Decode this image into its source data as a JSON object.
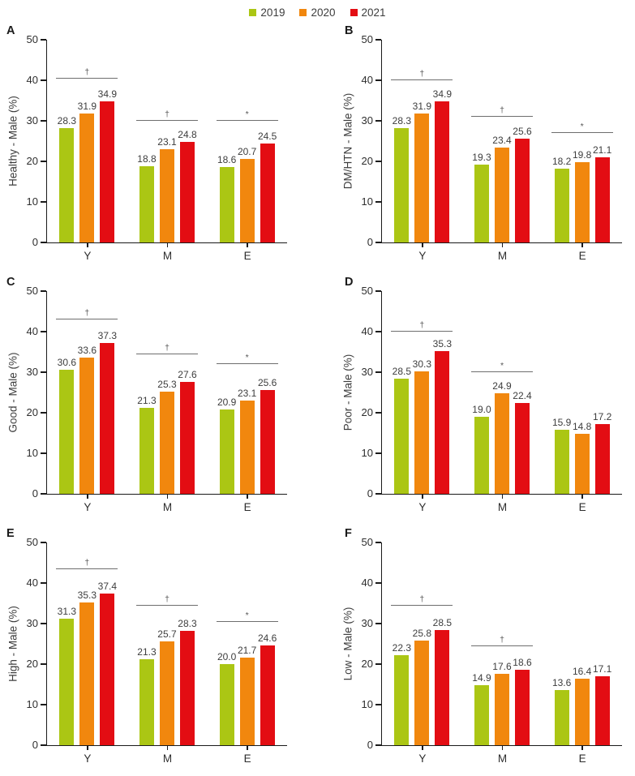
{
  "legend": {
    "items": [
      {
        "label": "2019",
        "color": "#abc614"
      },
      {
        "label": "2020",
        "color": "#f1870e"
      },
      {
        "label": "2021",
        "color": "#e30d13"
      }
    ]
  },
  "colors": {
    "series_2019": "#abc614",
    "series_2020": "#f1870e",
    "series_2021": "#e30d13",
    "axis": "#1a1a1a",
    "text": "#3d3d3d",
    "significance_line": "#6e6e6e"
  },
  "chart_data": [
    {
      "type": "bar",
      "panel": "A",
      "title": "",
      "xlabel": "",
      "ylabel": "Healthy - Male (%)",
      "ylim": [
        0,
        50
      ],
      "yticks": [
        0,
        10,
        20,
        30,
        40,
        50
      ],
      "grid": false,
      "legend_position": "top-center-shared",
      "categories": [
        "Y",
        "M",
        "E"
      ],
      "series": [
        {
          "name": "2019",
          "color": "#abc614",
          "values": [
            28.3,
            18.8,
            18.6
          ]
        },
        {
          "name": "2020",
          "color": "#f1870e",
          "values": [
            31.9,
            23.1,
            20.7
          ]
        },
        {
          "name": "2021",
          "color": "#e30d13",
          "values": [
            34.9,
            24.8,
            24.5
          ]
        }
      ],
      "significance": [
        {
          "category": "Y",
          "symbol": "†",
          "line_y": 40.5
        },
        {
          "category": "M",
          "symbol": "†",
          "line_y": 30
        },
        {
          "category": "E",
          "symbol": "*",
          "line_y": 30
        }
      ]
    },
    {
      "type": "bar",
      "panel": "B",
      "title": "",
      "xlabel": "",
      "ylabel": "DM/HTN - Male (%)",
      "ylim": [
        0,
        50
      ],
      "yticks": [
        0,
        10,
        20,
        30,
        40,
        50
      ],
      "grid": false,
      "legend_position": "top-center-shared",
      "categories": [
        "Y",
        "M",
        "E"
      ],
      "series": [
        {
          "name": "2019",
          "color": "#abc614",
          "values": [
            28.3,
            19.3,
            18.2
          ]
        },
        {
          "name": "2020",
          "color": "#f1870e",
          "values": [
            31.9,
            23.4,
            19.8
          ]
        },
        {
          "name": "2021",
          "color": "#e30d13",
          "values": [
            34.9,
            25.6,
            21.1
          ]
        }
      ],
      "significance": [
        {
          "category": "Y",
          "symbol": "†",
          "line_y": 40
        },
        {
          "category": "M",
          "symbol": "†",
          "line_y": 31
        },
        {
          "category": "E",
          "symbol": "*",
          "line_y": 27
        }
      ]
    },
    {
      "type": "bar",
      "panel": "C",
      "title": "",
      "xlabel": "",
      "ylabel": "Good - Male (%)",
      "ylim": [
        0,
        50
      ],
      "yticks": [
        0,
        10,
        20,
        30,
        40,
        50
      ],
      "grid": false,
      "legend_position": "top-center-shared",
      "categories": [
        "Y",
        "M",
        "E"
      ],
      "series": [
        {
          "name": "2019",
          "color": "#abc614",
          "values": [
            30.6,
            21.3,
            20.9
          ]
        },
        {
          "name": "2020",
          "color": "#f1870e",
          "values": [
            33.6,
            25.3,
            23.1
          ]
        },
        {
          "name": "2021",
          "color": "#e30d13",
          "values": [
            37.3,
            27.6,
            25.6
          ]
        }
      ],
      "significance": [
        {
          "category": "Y",
          "symbol": "†",
          "line_y": 43
        },
        {
          "category": "M",
          "symbol": "†",
          "line_y": 34.5
        },
        {
          "category": "E",
          "symbol": "*",
          "line_y": 32
        }
      ]
    },
    {
      "type": "bar",
      "panel": "D",
      "title": "",
      "xlabel": "",
      "ylabel": "Poor - Male (%)",
      "ylim": [
        0,
        50
      ],
      "yticks": [
        0,
        10,
        20,
        30,
        40,
        50
      ],
      "grid": false,
      "legend_position": "top-center-shared",
      "categories": [
        "Y",
        "M",
        "E"
      ],
      "series": [
        {
          "name": "2019",
          "color": "#abc614",
          "values": [
            28.5,
            19.0,
            15.9
          ]
        },
        {
          "name": "2020",
          "color": "#f1870e",
          "values": [
            30.3,
            24.9,
            14.8
          ]
        },
        {
          "name": "2021",
          "color": "#e30d13",
          "values": [
            35.3,
            22.4,
            17.2
          ]
        }
      ],
      "significance": [
        {
          "category": "Y",
          "symbol": "†",
          "line_y": 40
        },
        {
          "category": "M",
          "symbol": "*",
          "line_y": 30
        }
      ]
    },
    {
      "type": "bar",
      "panel": "E",
      "title": "",
      "xlabel": "",
      "ylabel": "High - Male (%)",
      "ylim": [
        0,
        50
      ],
      "yticks": [
        0,
        10,
        20,
        30,
        40,
        50
      ],
      "grid": false,
      "legend_position": "top-center-shared",
      "categories": [
        "Y",
        "M",
        "E"
      ],
      "series": [
        {
          "name": "2019",
          "color": "#abc614",
          "values": [
            31.3,
            21.3,
            20.0
          ]
        },
        {
          "name": "2020",
          "color": "#f1870e",
          "values": [
            35.3,
            25.7,
            21.7
          ]
        },
        {
          "name": "2021",
          "color": "#e30d13",
          "values": [
            37.4,
            28.3,
            24.6
          ]
        }
      ],
      "significance": [
        {
          "category": "Y",
          "symbol": "†",
          "line_y": 43.5
        },
        {
          "category": "M",
          "symbol": "†",
          "line_y": 34.5
        },
        {
          "category": "E",
          "symbol": "*",
          "line_y": 30.5
        }
      ]
    },
    {
      "type": "bar",
      "panel": "F",
      "title": "",
      "xlabel": "",
      "ylabel": "Low - Male (%)",
      "ylim": [
        0,
        50
      ],
      "yticks": [
        0,
        10,
        20,
        30,
        40,
        50
      ],
      "grid": false,
      "legend_position": "top-center-shared",
      "categories": [
        "Y",
        "M",
        "E"
      ],
      "series": [
        {
          "name": "2019",
          "color": "#abc614",
          "values": [
            22.3,
            14.9,
            13.6
          ]
        },
        {
          "name": "2020",
          "color": "#f1870e",
          "values": [
            25.8,
            17.6,
            16.4
          ]
        },
        {
          "name": "2021",
          "color": "#e30d13",
          "values": [
            28.5,
            18.6,
            17.1
          ]
        }
      ],
      "significance": [
        {
          "category": "Y",
          "symbol": "†",
          "line_y": 34.5
        },
        {
          "category": "M",
          "symbol": "†",
          "line_y": 24.5
        }
      ]
    }
  ]
}
